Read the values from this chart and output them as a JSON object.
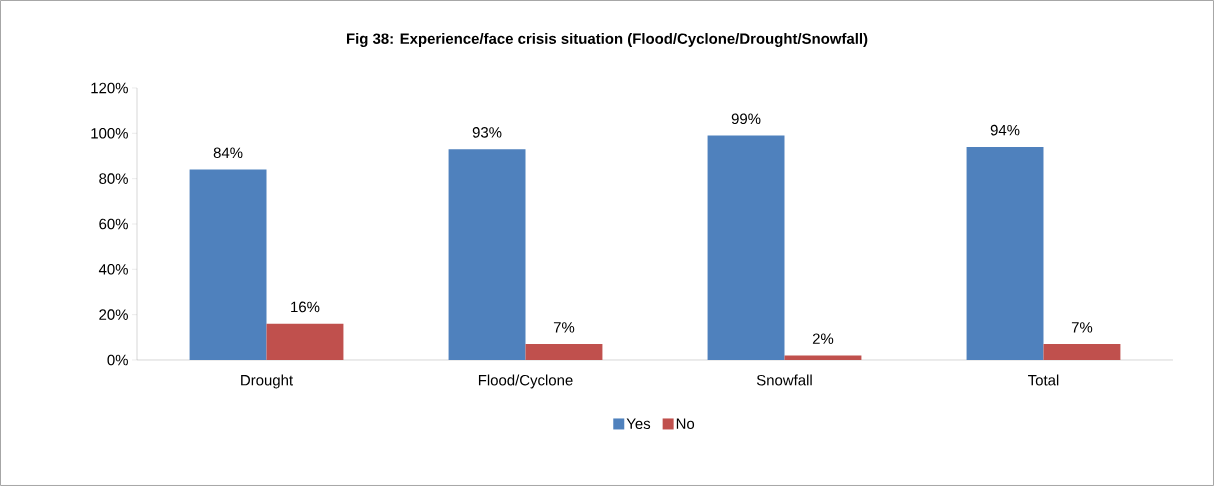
{
  "chart_data": {
    "type": "bar",
    "title": "Fig 38: Experience/face crisis situation (Flood/Cyclone/Drought/Snowfall)",
    "categories": [
      "Drought",
      "Flood/Cyclone",
      "Snowfall",
      "Total"
    ],
    "series": [
      {
        "name": "Yes",
        "color": "#4f81bd",
        "values": [
          84,
          93,
          99,
          94
        ],
        "value_labels": [
          "84%",
          "93%",
          "99%",
          "94%"
        ]
      },
      {
        "name": "No",
        "color": "#c0504d",
        "values": [
          16,
          7,
          2,
          7
        ],
        "value_labels": [
          "16%",
          "7%",
          "2%",
          "7%"
        ]
      }
    ],
    "ylim": [
      0,
      120
    ],
    "yticks": [
      {
        "value": 0,
        "label": "0%"
      },
      {
        "value": 20,
        "label": "20%"
      },
      {
        "value": 40,
        "label": "40%"
      },
      {
        "value": 60,
        "label": "60%"
      },
      {
        "value": 80,
        "label": "80%"
      },
      {
        "value": 100,
        "label": "100%"
      },
      {
        "value": 120,
        "label": "120%"
      }
    ],
    "legend": "bottom",
    "grid": false
  }
}
